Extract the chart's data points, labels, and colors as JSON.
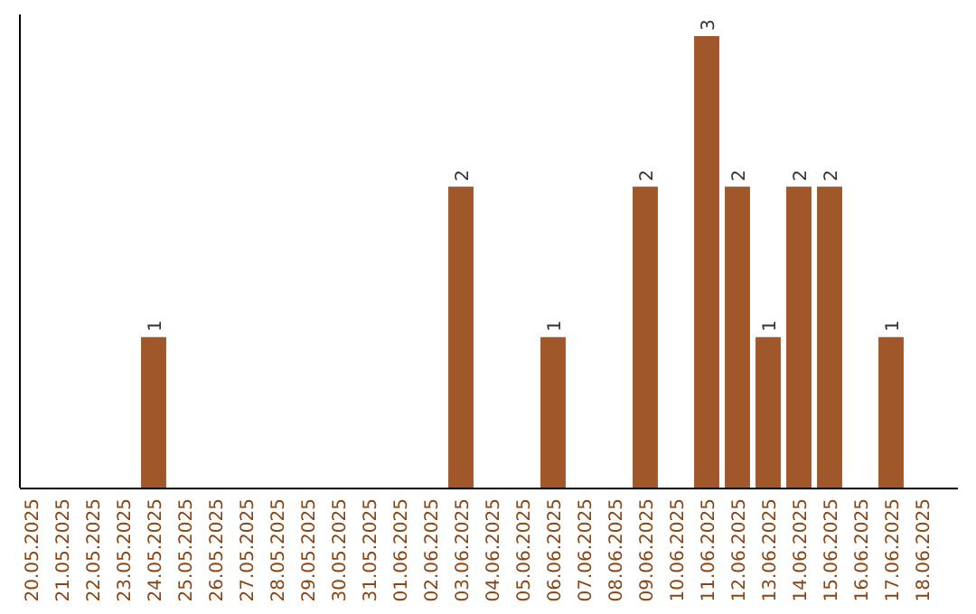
{
  "chart_data": {
    "type": "bar",
    "categories": [
      "20.05.2025",
      "21.05.2025",
      "22.05.2025",
      "23.05.2025",
      "24.05.2025",
      "25.05.2025",
      "26.05.2025",
      "27.05.2025",
      "28.05.2025",
      "29.05.2025",
      "30.05.2025",
      "31.05.2025",
      "01.06.2025",
      "02.06.2025",
      "03.06.2025",
      "04.06.2025",
      "05.06.2025",
      "06.06.2025",
      "07.06.2025",
      "08.06.2025",
      "09.06.2025",
      "10.06.2025",
      "11.06.2025",
      "12.06.2025",
      "13.06.2025",
      "14.06.2025",
      "15.06.2025",
      "16.06.2025",
      "17.06.2025",
      "18.06.2025"
    ],
    "values": [
      0,
      0,
      0,
      0,
      1,
      0,
      0,
      0,
      0,
      0,
      0,
      0,
      0,
      0,
      2,
      0,
      0,
      1,
      0,
      0,
      2,
      0,
      3,
      2,
      1,
      2,
      2,
      0,
      1,
      0
    ],
    "value_labels": [
      null,
      null,
      null,
      null,
      "1",
      null,
      null,
      null,
      null,
      null,
      null,
      null,
      null,
      null,
      "2",
      null,
      null,
      "1",
      null,
      null,
      "2",
      null,
      "3",
      "2",
      "1",
      "2",
      "2",
      null,
      "1",
      null
    ],
    "color": "#a0572a",
    "grid": false
  }
}
